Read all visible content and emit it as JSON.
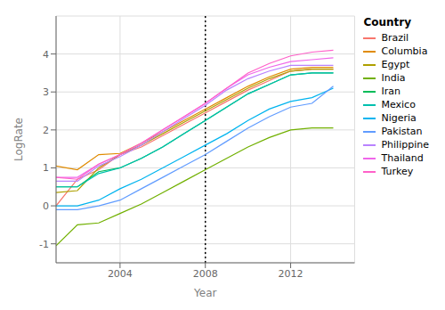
{
  "chart_data": {
    "type": "line",
    "xlabel": "Year",
    "ylabel": "LogRate",
    "legend_title": "Country",
    "legend": "right",
    "grid": true,
    "x": [
      2001,
      2002,
      2003,
      2004,
      2005,
      2006,
      2007,
      2008,
      2009,
      2010,
      2011,
      2012,
      2013,
      2014
    ],
    "xlim": [
      2001,
      2015
    ],
    "xticks": [
      2004,
      2008,
      2012
    ],
    "ylim": [
      -1.5,
      5.0
    ],
    "yticks": [
      -1,
      0,
      1,
      2,
      3,
      4
    ],
    "vline": {
      "x": 2008,
      "line_style": "dotted",
      "color": "#000000"
    },
    "series": [
      {
        "name": "Brazil",
        "color": "#F8766D",
        "values": [
          0.0,
          0.7,
          0.95,
          1.35,
          1.55,
          1.85,
          2.15,
          2.45,
          2.75,
          3.05,
          3.3,
          3.55,
          3.6,
          3.6
        ]
      },
      {
        "name": "Columbia",
        "color": "#E08B00",
        "values": [
          1.05,
          0.95,
          1.35,
          1.38,
          1.65,
          1.95,
          2.25,
          2.55,
          2.85,
          3.15,
          3.4,
          3.6,
          3.65,
          3.65
        ]
      },
      {
        "name": "Egypt",
        "color": "#AEA000",
        "values": [
          0.35,
          0.4,
          1.0,
          1.35,
          1.6,
          1.9,
          2.2,
          2.5,
          2.8,
          3.1,
          3.35,
          3.55,
          3.6,
          3.6
        ]
      },
      {
        "name": "India",
        "color": "#71B000",
        "values": [
          -1.05,
          -0.5,
          -0.45,
          -0.2,
          0.05,
          0.35,
          0.65,
          0.95,
          1.25,
          1.55,
          1.8,
          2.0,
          2.05,
          2.05
        ]
      },
      {
        "name": "Iran",
        "color": "#00BC59",
        "values": [
          0.5,
          0.5,
          0.9,
          1.0,
          1.25,
          1.55,
          1.9,
          2.25,
          2.6,
          2.95,
          3.2,
          3.45,
          3.5,
          3.5
        ]
      },
      {
        "name": "Mexico",
        "color": "#00C0AF",
        "values": [
          0.5,
          0.5,
          0.85,
          1.0,
          1.25,
          1.55,
          1.9,
          2.25,
          2.6,
          2.95,
          3.2,
          3.45,
          3.5,
          3.5
        ]
      },
      {
        "name": "Nigeria",
        "color": "#00B4EF",
        "values": [
          0.0,
          0.0,
          0.15,
          0.45,
          0.7,
          1.0,
          1.3,
          1.6,
          1.9,
          2.25,
          2.55,
          2.75,
          2.85,
          3.1
        ]
      },
      {
        "name": "Pakistan",
        "color": "#619CFF",
        "values": [
          -0.1,
          -0.1,
          0.0,
          0.15,
          0.45,
          0.75,
          1.05,
          1.35,
          1.7,
          2.05,
          2.35,
          2.6,
          2.7,
          3.15
        ]
      },
      {
        "name": "Philippine",
        "color": "#B983FF",
        "values": [
          0.65,
          0.65,
          1.05,
          1.3,
          1.6,
          1.95,
          2.3,
          2.65,
          3.05,
          3.35,
          3.55,
          3.7,
          3.7,
          3.7
        ]
      },
      {
        "name": "Thailand",
        "color": "#F066EA",
        "values": [
          0.75,
          0.75,
          1.1,
          1.35,
          1.65,
          2.0,
          2.35,
          2.7,
          3.1,
          3.45,
          3.65,
          3.8,
          3.85,
          3.9
        ]
      },
      {
        "name": "Turkey",
        "color": "#FF61C9",
        "values": [
          0.75,
          0.7,
          1.1,
          1.35,
          1.65,
          2.0,
          2.35,
          2.7,
          3.1,
          3.5,
          3.75,
          3.95,
          4.05,
          4.1
        ]
      }
    ]
  }
}
